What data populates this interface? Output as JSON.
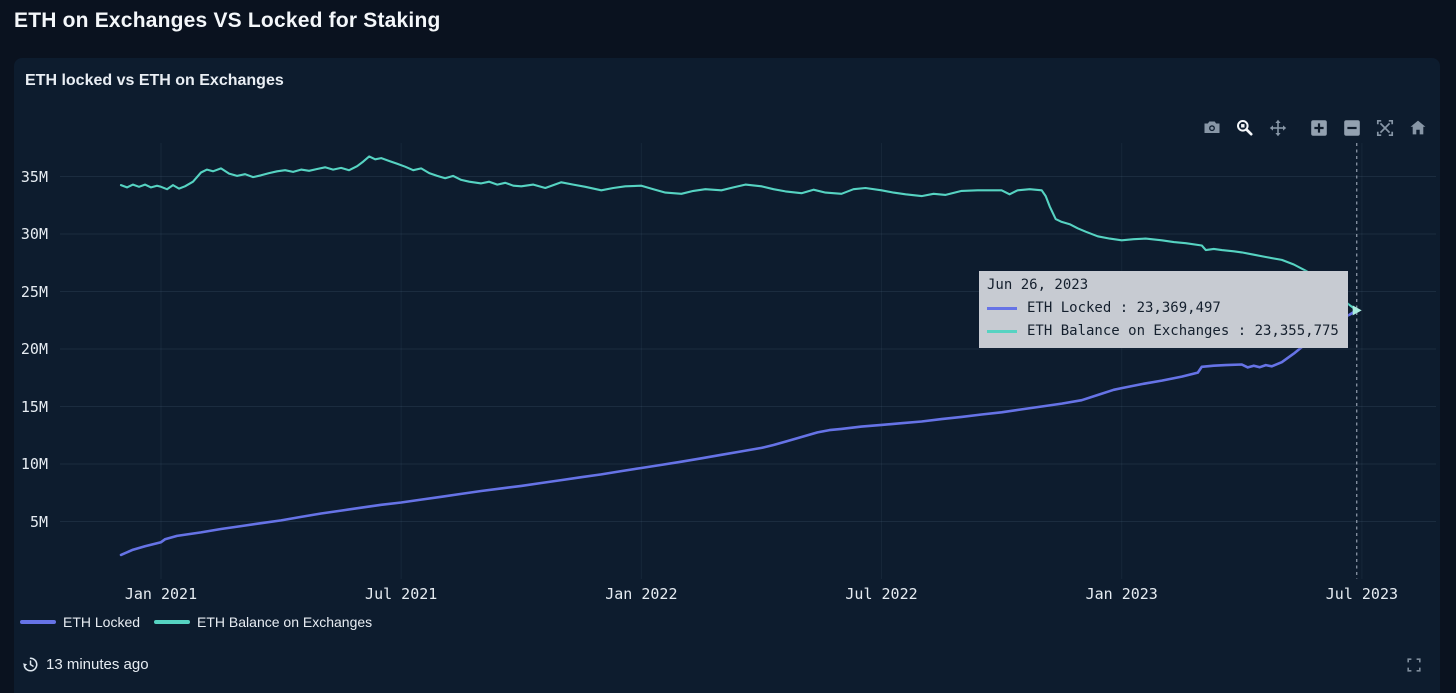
{
  "page": {
    "title": "ETH on Exchanges VS Locked for Staking"
  },
  "card": {
    "title": "ETH locked vs ETH on Exchanges"
  },
  "modebar": {
    "icons": [
      "camera",
      "zoom",
      "pan",
      "zoom-in",
      "zoom-out",
      "autoscale",
      "reset-axes-home"
    ],
    "active_icon": "zoom"
  },
  "colors": {
    "page_bg": "#0a121f",
    "card_bg": "#0d1c2e",
    "eth_locked": "#6673e6",
    "eth_exchanges": "#56d3c2",
    "tooltip_bg": "#c7cbd2",
    "tooltip_text": "#15202e",
    "axis_text": "#e6ecf2",
    "modebar_gray": "#8796a6",
    "modebar_active": "#f4f7fa"
  },
  "chart_data": {
    "type": "line",
    "title": "ETH locked vs ETH on Exchanges",
    "xlabel": "",
    "ylabel": "",
    "grid": true,
    "legend_position": "bottom-left",
    "ylim": [
      0,
      37.9
    ],
    "y_unit": "ETH (millions)",
    "yticks": [
      {
        "label": "5M",
        "value": 5
      },
      {
        "label": "10M",
        "value": 10
      },
      {
        "label": "15M",
        "value": 15
      },
      {
        "label": "20M",
        "value": 20
      },
      {
        "label": "25M",
        "value": 25
      },
      {
        "label": "30M",
        "value": 30
      },
      {
        "label": "35M",
        "value": 35
      }
    ],
    "xticks": [
      {
        "label": "Jan 2021",
        "t": 1
      },
      {
        "label": "Jul 2021",
        "t": 7
      },
      {
        "label": "Jan 2022",
        "t": 13
      },
      {
        "label": "Jul 2022",
        "t": 19
      },
      {
        "label": "Jan 2023",
        "t": 25
      },
      {
        "label": "Jul 2023",
        "t": 31
      }
    ],
    "x_unit": "months (1 = Jan 2021)",
    "hover": {
      "t": 30.87,
      "date": "Jun 26, 2023"
    },
    "series": [
      {
        "name": "ETH Locked",
        "color": "#6673e6",
        "width": 2.6,
        "points": [
          [
            0,
            2.1
          ],
          [
            0.3,
            2.55
          ],
          [
            0.6,
            2.85
          ],
          [
            1,
            3.2
          ],
          [
            1.1,
            3.45
          ],
          [
            1.4,
            3.75
          ],
          [
            2,
            4.05
          ],
          [
            2.5,
            4.35
          ],
          [
            3,
            4.6
          ],
          [
            3.5,
            4.85
          ],
          [
            4,
            5.1
          ],
          [
            4.5,
            5.4
          ],
          [
            5,
            5.7
          ],
          [
            5.5,
            5.95
          ],
          [
            6,
            6.2
          ],
          [
            6.5,
            6.45
          ],
          [
            7,
            6.65
          ],
          [
            7.5,
            6.9
          ],
          [
            8,
            7.15
          ],
          [
            8.5,
            7.4
          ],
          [
            9,
            7.65
          ],
          [
            9.5,
            7.88
          ],
          [
            10,
            8.1
          ],
          [
            10.5,
            8.35
          ],
          [
            11,
            8.6
          ],
          [
            11.5,
            8.85
          ],
          [
            12,
            9.1
          ],
          [
            12.5,
            9.38
          ],
          [
            13,
            9.65
          ],
          [
            13.5,
            9.92
          ],
          [
            14,
            10.2
          ],
          [
            14.5,
            10.5
          ],
          [
            15,
            10.8
          ],
          [
            15.5,
            11.1
          ],
          [
            16,
            11.4
          ],
          [
            16.3,
            11.65
          ],
          [
            16.6,
            11.95
          ],
          [
            17,
            12.35
          ],
          [
            17.4,
            12.75
          ],
          [
            17.7,
            12.95
          ],
          [
            18,
            13.05
          ],
          [
            18.5,
            13.25
          ],
          [
            19,
            13.4
          ],
          [
            19.5,
            13.55
          ],
          [
            20,
            13.7
          ],
          [
            20.5,
            13.9
          ],
          [
            21,
            14.1
          ],
          [
            21.5,
            14.3
          ],
          [
            22,
            14.5
          ],
          [
            22.5,
            14.75
          ],
          [
            23,
            15
          ],
          [
            23.5,
            15.25
          ],
          [
            24,
            15.55
          ],
          [
            24.4,
            16
          ],
          [
            24.8,
            16.45
          ],
          [
            25,
            16.6
          ],
          [
            25.5,
            16.95
          ],
          [
            26,
            17.25
          ],
          [
            26.5,
            17.6
          ],
          [
            26.9,
            17.95
          ],
          [
            27,
            18.45
          ],
          [
            27.3,
            18.55
          ],
          [
            27.6,
            18.6
          ],
          [
            28,
            18.65
          ],
          [
            28.15,
            18.4
          ],
          [
            28.3,
            18.55
          ],
          [
            28.45,
            18.42
          ],
          [
            28.6,
            18.6
          ],
          [
            28.75,
            18.5
          ],
          [
            29,
            18.85
          ],
          [
            29.3,
            19.6
          ],
          [
            29.6,
            20.45
          ],
          [
            29.9,
            21.2
          ],
          [
            30.2,
            22
          ],
          [
            30.5,
            22.65
          ],
          [
            30.7,
            23
          ],
          [
            30.87,
            23.37
          ]
        ]
      },
      {
        "name": "ETH Balance on Exchanges",
        "color": "#56d3c2",
        "width": 2.1,
        "points": [
          [
            0,
            34.25
          ],
          [
            0.15,
            34.05
          ],
          [
            0.3,
            34.3
          ],
          [
            0.45,
            34.1
          ],
          [
            0.6,
            34.3
          ],
          [
            0.75,
            34.05
          ],
          [
            0.9,
            34.2
          ],
          [
            1,
            34.1
          ],
          [
            1.15,
            33.9
          ],
          [
            1.3,
            34.25
          ],
          [
            1.45,
            33.95
          ],
          [
            1.6,
            34.15
          ],
          [
            1.8,
            34.55
          ],
          [
            2,
            35.35
          ],
          [
            2.15,
            35.6
          ],
          [
            2.3,
            35.45
          ],
          [
            2.5,
            35.7
          ],
          [
            2.7,
            35.25
          ],
          [
            2.9,
            35.05
          ],
          [
            3.1,
            35.2
          ],
          [
            3.3,
            34.95
          ],
          [
            3.5,
            35.1
          ],
          [
            3.7,
            35.3
          ],
          [
            3.9,
            35.45
          ],
          [
            4.1,
            35.55
          ],
          [
            4.3,
            35.4
          ],
          [
            4.5,
            35.6
          ],
          [
            4.7,
            35.5
          ],
          [
            4.9,
            35.65
          ],
          [
            5.1,
            35.8
          ],
          [
            5.3,
            35.6
          ],
          [
            5.5,
            35.75
          ],
          [
            5.7,
            35.55
          ],
          [
            5.9,
            35.9
          ],
          [
            6.05,
            36.3
          ],
          [
            6.2,
            36.75
          ],
          [
            6.35,
            36.5
          ],
          [
            6.5,
            36.6
          ],
          [
            6.7,
            36.35
          ],
          [
            6.9,
            36.1
          ],
          [
            7.1,
            35.85
          ],
          [
            7.3,
            35.55
          ],
          [
            7.5,
            35.7
          ],
          [
            7.7,
            35.3
          ],
          [
            7.9,
            35.05
          ],
          [
            8.1,
            34.85
          ],
          [
            8.3,
            35.05
          ],
          [
            8.5,
            34.7
          ],
          [
            8.7,
            34.55
          ],
          [
            9,
            34.4
          ],
          [
            9.2,
            34.55
          ],
          [
            9.4,
            34.3
          ],
          [
            9.6,
            34.45
          ],
          [
            9.8,
            34.2
          ],
          [
            10,
            34.15
          ],
          [
            10.3,
            34.3
          ],
          [
            10.6,
            34
          ],
          [
            11,
            34.5
          ],
          [
            11.3,
            34.3
          ],
          [
            11.6,
            34.1
          ],
          [
            12,
            33.8
          ],
          [
            12.3,
            34
          ],
          [
            12.6,
            34.15
          ],
          [
            13,
            34.2
          ],
          [
            13.3,
            33.9
          ],
          [
            13.6,
            33.6
          ],
          [
            14,
            33.5
          ],
          [
            14.3,
            33.75
          ],
          [
            14.6,
            33.9
          ],
          [
            15,
            33.8
          ],
          [
            15.3,
            34.05
          ],
          [
            15.6,
            34.3
          ],
          [
            16,
            34.15
          ],
          [
            16.3,
            33.9
          ],
          [
            16.6,
            33.7
          ],
          [
            17,
            33.55
          ],
          [
            17.3,
            33.85
          ],
          [
            17.6,
            33.6
          ],
          [
            18,
            33.5
          ],
          [
            18.3,
            33.9
          ],
          [
            18.6,
            34
          ],
          [
            19,
            33.8
          ],
          [
            19.3,
            33.6
          ],
          [
            19.6,
            33.45
          ],
          [
            20,
            33.3
          ],
          [
            20.3,
            33.5
          ],
          [
            20.6,
            33.4
          ],
          [
            21,
            33.75
          ],
          [
            21.4,
            33.8
          ],
          [
            22,
            33.8
          ],
          [
            22.2,
            33.45
          ],
          [
            22.4,
            33.8
          ],
          [
            22.7,
            33.9
          ],
          [
            23,
            33.8
          ],
          [
            23.1,
            33.3
          ],
          [
            23.2,
            32.4
          ],
          [
            23.35,
            31.3
          ],
          [
            23.5,
            31.05
          ],
          [
            23.7,
            30.85
          ],
          [
            23.9,
            30.5
          ],
          [
            24.1,
            30.2
          ],
          [
            24.4,
            29.8
          ],
          [
            24.7,
            29.6
          ],
          [
            25,
            29.45
          ],
          [
            25.3,
            29.55
          ],
          [
            25.6,
            29.6
          ],
          [
            26,
            29.45
          ],
          [
            26.3,
            29.3
          ],
          [
            26.6,
            29.2
          ],
          [
            27,
            29
          ],
          [
            27.1,
            28.6
          ],
          [
            27.3,
            28.7
          ],
          [
            27.5,
            28.6
          ],
          [
            27.8,
            28.5
          ],
          [
            28,
            28.4
          ],
          [
            28.3,
            28.2
          ],
          [
            28.6,
            28
          ],
          [
            29,
            27.75
          ],
          [
            29.3,
            27.35
          ],
          [
            29.6,
            26.8
          ],
          [
            29.9,
            26.15
          ],
          [
            30.1,
            25.55
          ],
          [
            30.3,
            24.95
          ],
          [
            30.5,
            24.35
          ],
          [
            30.7,
            23.8
          ],
          [
            30.87,
            23.36
          ]
        ]
      }
    ]
  },
  "tooltip": {
    "date": "Jun 26, 2023",
    "rows": [
      {
        "series": "ETH Locked",
        "value": "23,369,497",
        "color": "#6673e6"
      },
      {
        "series": "ETH Balance on Exchanges",
        "value": "23,355,775",
        "color": "#56d3c2"
      }
    ]
  },
  "legend": {
    "items": [
      {
        "label": "ETH Locked",
        "color": "#6673e6"
      },
      {
        "label": "ETH Balance on Exchanges",
        "color": "#56d3c2"
      }
    ]
  },
  "footer": {
    "updated": "13 minutes ago"
  }
}
